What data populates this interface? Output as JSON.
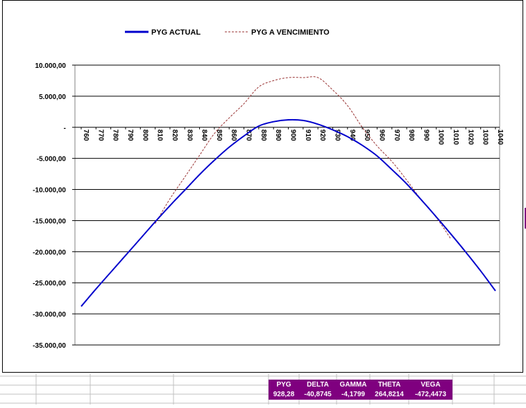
{
  "chart_data": {
    "type": "line",
    "title": "",
    "xlabel": "",
    "ylabel": "",
    "x": [
      760,
      770,
      780,
      790,
      800,
      810,
      820,
      830,
      840,
      850,
      860,
      870,
      880,
      890,
      900,
      910,
      920,
      930,
      940,
      950,
      960,
      970,
      980,
      990,
      1000,
      1010,
      1020,
      1030,
      1040
    ],
    "x_tick_labels": [
      "760",
      "770",
      "780",
      "790",
      "800",
      "810",
      "820",
      "830",
      "840",
      "850",
      "860",
      "870",
      "880",
      "890",
      "900",
      "910",
      "920",
      "930",
      "940",
      "950",
      "960",
      "970",
      "980",
      "990",
      "1000",
      "1010",
      "1020",
      "1030",
      "1040"
    ],
    "y_tick_labels": [
      "10.000,00",
      "5.000,00",
      "-",
      "-5.000,00",
      "-10.000,00",
      "-15.000,00",
      "-20.000,00",
      "-25.000,00",
      "-30.000,00",
      "-35.000,00"
    ],
    "ylim": [
      -35000,
      10000
    ],
    "xlim": [
      760,
      1040
    ],
    "grid": "horizontal",
    "legend_position": "top",
    "series": [
      {
        "name": "PYG ACTUAL",
        "style": "solid",
        "color": "#0000cc",
        "values": [
          -28800,
          -26000,
          -23300,
          -20600,
          -17900,
          -15200,
          -12600,
          -10100,
          -7600,
          -5300,
          -3200,
          -1400,
          200,
          900,
          1200,
          1100,
          500,
          -400,
          -1500,
          -2900,
          -4600,
          -6800,
          -9100,
          -11700,
          -14400,
          -17200,
          -20100,
          -23100,
          -26300
        ]
      },
      {
        "name": "PYG A VENCIMIENTO",
        "style": "dashed",
        "color": "#993333",
        "values": [
          null,
          null,
          null,
          null,
          null,
          -15500,
          -11500,
          -8000,
          -4500,
          -1000,
          1500,
          3800,
          6500,
          7500,
          8000,
          8000,
          8000,
          6000,
          3500,
          0,
          -3000,
          -5500,
          -8500,
          -11700,
          -14500,
          -18000,
          null,
          null,
          null
        ]
      }
    ]
  },
  "stats": {
    "labels": [
      "PYG",
      "DELTA",
      "GAMMA",
      "THETA",
      "VEGA"
    ],
    "values": [
      "928,28",
      "-40,8745",
      "-4,1799",
      "264,8214",
      "-472,4473"
    ]
  }
}
